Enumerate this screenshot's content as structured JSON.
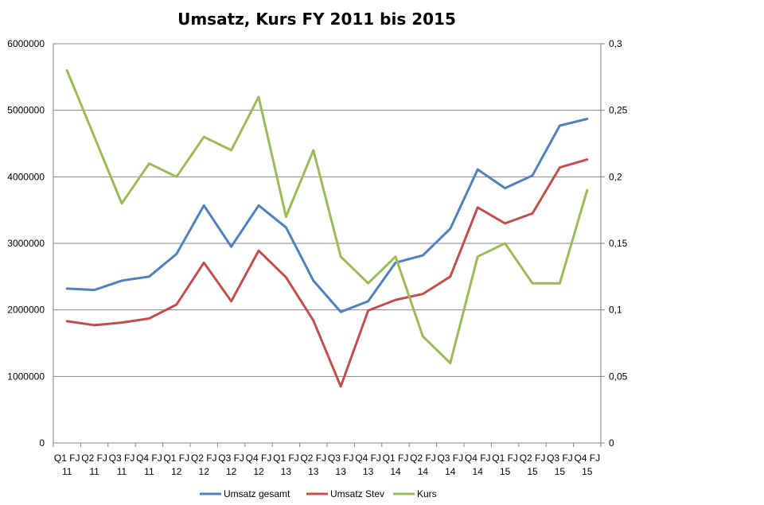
{
  "chart_data": {
    "type": "line",
    "title": "Umsatz, Kurs FY 2011 bis 2015",
    "categories": [
      [
        "Q1 FJ",
        "11"
      ],
      [
        "Q2 FJ",
        "11"
      ],
      [
        "Q3 FJ",
        "11"
      ],
      [
        "Q4 FJ",
        "11"
      ],
      [
        "Q1 FJ",
        "12"
      ],
      [
        "Q2 FJ",
        "12"
      ],
      [
        "Q3 FJ",
        "12"
      ],
      [
        "Q4 FJ",
        "12"
      ],
      [
        "Q1 FJ",
        "13"
      ],
      [
        "Q2 FJ",
        "13"
      ],
      [
        "Q3 FJ",
        "13"
      ],
      [
        "Q4 FJ",
        "13"
      ],
      [
        "Q1 FJ",
        "14"
      ],
      [
        "Q2 FJ",
        "14"
      ],
      [
        "Q3 FJ",
        "14"
      ],
      [
        "Q4 FJ",
        "14"
      ],
      [
        "Q1 FJ",
        "15"
      ],
      [
        "Q2 FJ",
        "15"
      ],
      [
        "Q3 FJ",
        "15"
      ],
      [
        "Q4 FJ",
        "15"
      ]
    ],
    "y_left": {
      "min": 0,
      "max": 6000000,
      "step": 1000000,
      "tick_labels": [
        "0",
        "1000000",
        "2000000",
        "3000000",
        "4000000",
        "5000000",
        "6000000"
      ]
    },
    "y_right": {
      "min": 0,
      "max": 0.3,
      "step": 0.05,
      "tick_labels": [
        "0",
        "0,05",
        "0,1",
        "0,15",
        "0,2",
        "0,25",
        "0,3"
      ]
    },
    "grid": true,
    "legend_position": "bottom",
    "series": [
      {
        "name": "Umsatz gesamt",
        "axis": "left",
        "color": "#4f81bd",
        "values": [
          2320000,
          2300000,
          2440000,
          2500000,
          2840000,
          3570000,
          2950000,
          3570000,
          3240000,
          2440000,
          1970000,
          2130000,
          2710000,
          2820000,
          3220000,
          4110000,
          3830000,
          4020000,
          4770000,
          4870000
        ]
      },
      {
        "name": "Umsatz Stev",
        "axis": "left",
        "color": "#c0504d",
        "values": [
          1830000,
          1770000,
          1810000,
          1870000,
          2080000,
          2710000,
          2130000,
          2890000,
          2490000,
          1840000,
          850000,
          1990000,
          2150000,
          2240000,
          2500000,
          3540000,
          3300000,
          3450000,
          4140000,
          4260000
        ]
      },
      {
        "name": "Kurs",
        "axis": "right",
        "color": "#9bbb59",
        "values": [
          0.28,
          0.23,
          0.18,
          0.21,
          0.2,
          0.23,
          0.22,
          0.26,
          0.17,
          0.22,
          0.14,
          0.12,
          0.14,
          0.08,
          0.06,
          0.14,
          0.15,
          0.12,
          0.12,
          0.19
        ]
      }
    ]
  }
}
